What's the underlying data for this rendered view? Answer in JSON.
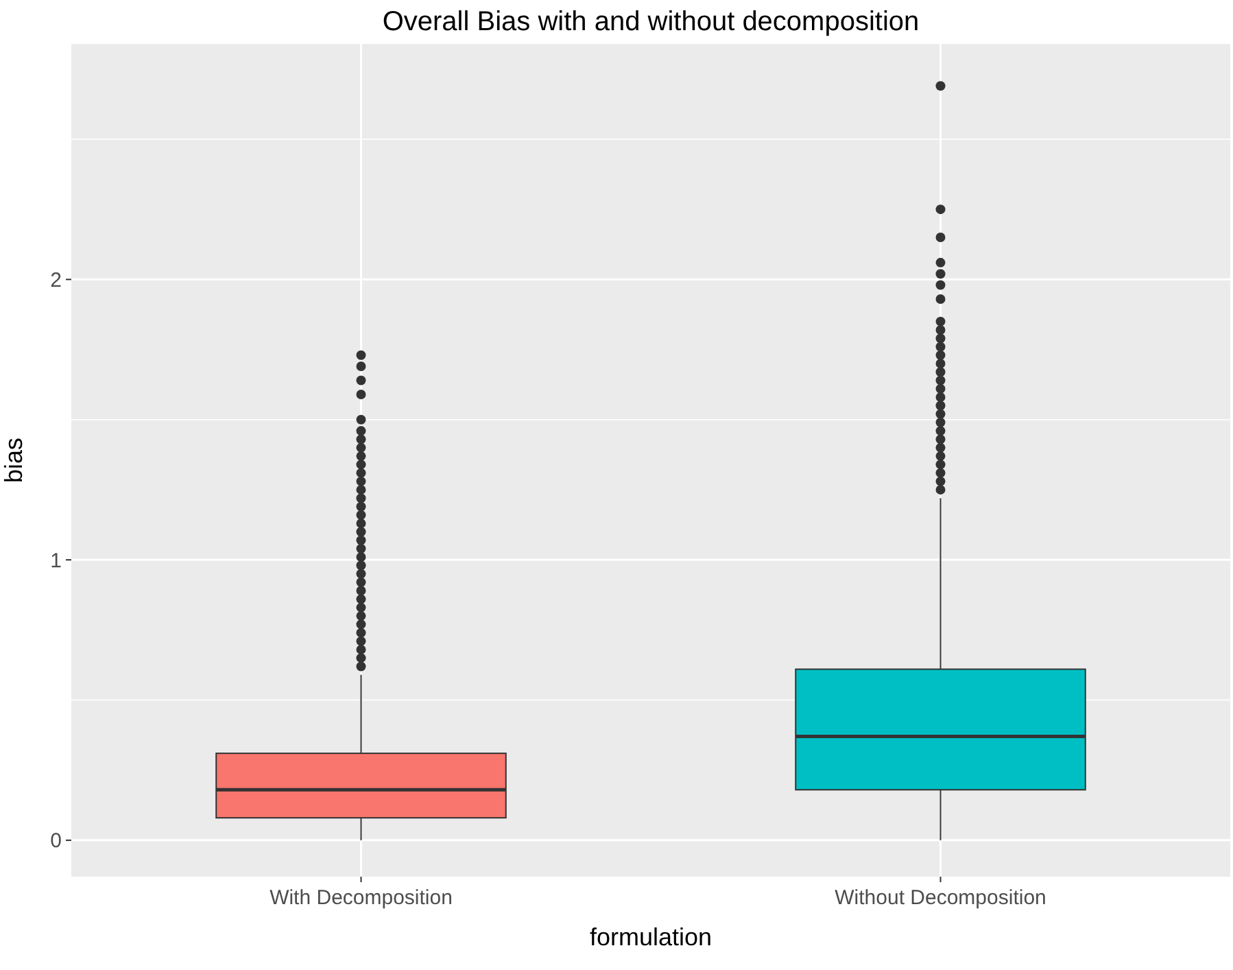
{
  "chart_data": {
    "type": "box",
    "title": "Overall Bias with and without decomposition",
    "xlabel": "formulation",
    "ylabel": "bias",
    "categories": [
      "With Decomposition",
      "Without Decomposition"
    ],
    "colors": [
      "#f8766d",
      "#00bfc4"
    ],
    "boxes": [
      {
        "low": 0,
        "q1": 0.08,
        "median": 0.18,
        "q3": 0.31,
        "high": 0.59,
        "outliers": [
          0.62,
          0.65,
          0.68,
          0.71,
          0.74,
          0.77,
          0.8,
          0.83,
          0.86,
          0.89,
          0.92,
          0.95,
          0.98,
          1.01,
          1.04,
          1.07,
          1.1,
          1.13,
          1.16,
          1.19,
          1.22,
          1.25,
          1.28,
          1.31,
          1.34,
          1.37,
          1.4,
          1.43,
          1.46,
          1.5,
          1.59,
          1.64,
          1.69,
          1.73
        ]
      },
      {
        "low": 0,
        "q1": 0.18,
        "median": 0.37,
        "q3": 0.61,
        "high": 1.22,
        "outliers": [
          1.25,
          1.28,
          1.31,
          1.34,
          1.37,
          1.4,
          1.43,
          1.46,
          1.49,
          1.52,
          1.55,
          1.58,
          1.61,
          1.64,
          1.67,
          1.7,
          1.73,
          1.76,
          1.79,
          1.82,
          1.85,
          1.93,
          1.98,
          2.02,
          2.06,
          2.15,
          2.25,
          2.69
        ]
      }
    ],
    "ylim": [
      -0.13,
      2.84
    ],
    "yticks": [
      0,
      {
        "value": 0.5,
        "label": null
      },
      1,
      {
        "value": 1.5,
        "label": null
      },
      2,
      {
        "value": 2.5,
        "label": null
      }
    ],
    "grid": true
  }
}
